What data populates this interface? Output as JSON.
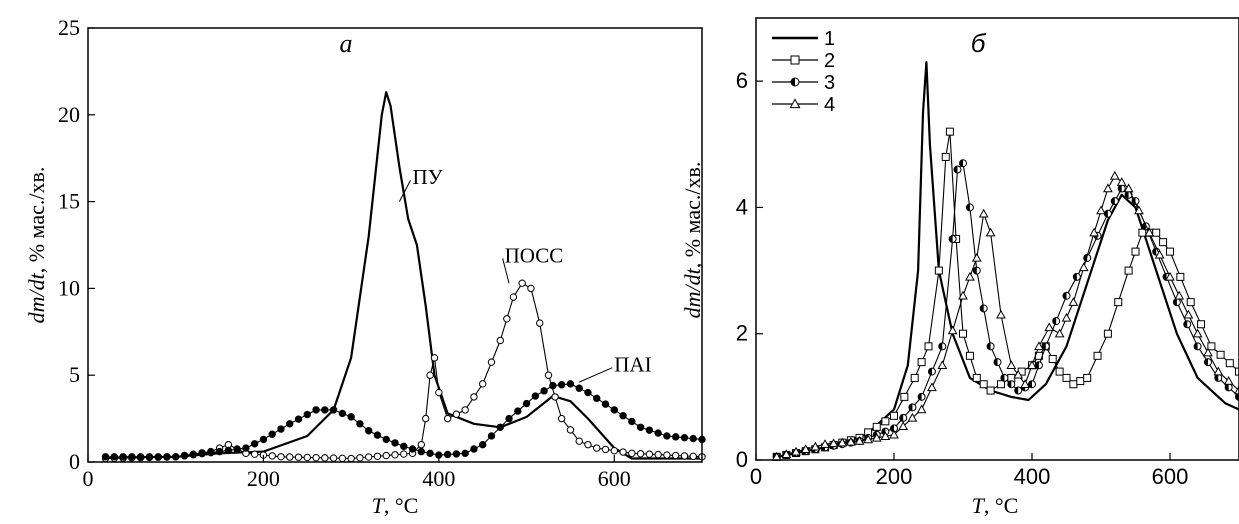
{
  "chart_data": [
    {
      "type": "line",
      "panel_label": "a",
      "xlabel_var": "T",
      "xlabel_unit": ", °C",
      "ylabel_var": "dm/dt",
      "ylabel_unit": ", % мас./хв.",
      "xlim": [
        0,
        700
      ],
      "ylim": [
        0,
        25
      ],
      "x_ticks": [
        0,
        200,
        400,
        600
      ],
      "y_ticks": [
        0,
        5,
        10,
        15,
        20,
        25
      ],
      "grid": false,
      "series": [
        {
          "name": "ПУ",
          "marker": "none",
          "points": [
            [
              20,
              0.25
            ],
            [
              100,
              0.3
            ],
            [
              150,
              0.5
            ],
            [
              200,
              0.6
            ],
            [
              250,
              1.5
            ],
            [
              280,
              3
            ],
            [
              300,
              6
            ],
            [
              320,
              13
            ],
            [
              335,
              20
            ],
            [
              340,
              21.3
            ],
            [
              345,
              20.5
            ],
            [
              355,
              17
            ],
            [
              365,
              14
            ],
            [
              375,
              12.5
            ],
            [
              385,
              9
            ],
            [
              395,
              5
            ],
            [
              410,
              2.8
            ],
            [
              440,
              2.2
            ],
            [
              470,
              2.0
            ],
            [
              500,
              2.6
            ],
            [
              530,
              3.8
            ],
            [
              550,
              3.5
            ],
            [
              570,
              2.5
            ],
            [
              600,
              0.8
            ],
            [
              620,
              0.2
            ],
            [
              700,
              0.2
            ]
          ]
        },
        {
          "name": "ПОСС",
          "marker": "open-circle",
          "points": [
            [
              20,
              0.2
            ],
            [
              100,
              0.3
            ],
            [
              140,
              0.6
            ],
            [
              160,
              1.0
            ],
            [
              180,
              0.5
            ],
            [
              220,
              0.3
            ],
            [
              300,
              0.2
            ],
            [
              370,
              0.5
            ],
            [
              380,
              1.0
            ],
            [
              385,
              2.5
            ],
            [
              390,
              5.0
            ],
            [
              395,
              6.0
            ],
            [
              400,
              4.0
            ],
            [
              410,
              2.5
            ],
            [
              430,
              3.0
            ],
            [
              450,
              4.5
            ],
            [
              470,
              7.0
            ],
            [
              485,
              9.5
            ],
            [
              495,
              10.3
            ],
            [
              505,
              10.0
            ],
            [
              515,
              8.0
            ],
            [
              525,
              5.0
            ],
            [
              540,
              2.5
            ],
            [
              560,
              1.2
            ],
            [
              580,
              0.8
            ],
            [
              620,
              0.5
            ],
            [
              700,
              0.3
            ]
          ]
        },
        {
          "name": "ПАІ",
          "marker": "filled-circle",
          "points": [
            [
              20,
              0.3
            ],
            [
              100,
              0.3
            ],
            [
              150,
              0.6
            ],
            [
              180,
              0.8
            ],
            [
              200,
              1.3
            ],
            [
              230,
              2.2
            ],
            [
              260,
              3.0
            ],
            [
              280,
              3.0
            ],
            [
              300,
              2.6
            ],
            [
              320,
              1.8
            ],
            [
              340,
              1.3
            ],
            [
              360,
              0.9
            ],
            [
              380,
              0.6
            ],
            [
              400,
              0.4
            ],
            [
              430,
              0.5
            ],
            [
              450,
              1.0
            ],
            [
              480,
              2.5
            ],
            [
              510,
              3.8
            ],
            [
              530,
              4.4
            ],
            [
              550,
              4.5
            ],
            [
              570,
              4.0
            ],
            [
              600,
              3.0
            ],
            [
              630,
              2.0
            ],
            [
              660,
              1.5
            ],
            [
              700,
              1.3
            ]
          ]
        }
      ],
      "annotations": [
        {
          "text": "ПУ",
          "x": 370,
          "y": 16,
          "from": [
            355,
            15
          ]
        },
        {
          "text": "ПОСС",
          "x": 475,
          "y": 11.5,
          "from": [
            480,
            10.3
          ]
        },
        {
          "text": "ПАІ",
          "x": 600,
          "y": 5.2,
          "from": [
            560,
            4.6
          ]
        }
      ]
    },
    {
      "type": "line",
      "panel_label": "б",
      "xlabel_var": "T",
      "xlabel_unit": ", °C",
      "ylabel_var": "dm/dt",
      "ylabel_unit": ", % мас./хв.",
      "xlim": [
        0,
        700
      ],
      "ylim": [
        0,
        7
      ],
      "x_ticks": [
        0,
        200,
        400,
        600
      ],
      "y_ticks": [
        0,
        2,
        4,
        6
      ],
      "grid": false,
      "legend_position": "top-left",
      "series": [
        {
          "name": "1",
          "marker": "none",
          "points": [
            [
              30,
              0.05
            ],
            [
              100,
              0.2
            ],
            [
              160,
              0.4
            ],
            [
              200,
              0.8
            ],
            [
              220,
              1.5
            ],
            [
              235,
              3.0
            ],
            [
              242,
              5.5
            ],
            [
              247,
              6.3
            ],
            [
              252,
              5.0
            ],
            [
              265,
              3.0
            ],
            [
              285,
              2.0
            ],
            [
              310,
              1.3
            ],
            [
              340,
              1.1
            ],
            [
              370,
              1.0
            ],
            [
              395,
              0.95
            ],
            [
              420,
              1.2
            ],
            [
              450,
              1.8
            ],
            [
              480,
              2.8
            ],
            [
              510,
              3.8
            ],
            [
              530,
              4.2
            ],
            [
              550,
              4.0
            ],
            [
              580,
              3.0
            ],
            [
              610,
              2.0
            ],
            [
              640,
              1.3
            ],
            [
              680,
              0.9
            ],
            [
              700,
              0.8
            ]
          ]
        },
        {
          "name": "2",
          "marker": "open-square",
          "points": [
            [
              30,
              0.05
            ],
            [
              100,
              0.2
            ],
            [
              150,
              0.35
            ],
            [
              200,
              0.7
            ],
            [
              230,
              1.3
            ],
            [
              250,
              1.8
            ],
            [
              265,
              3.0
            ],
            [
              275,
              4.8
            ],
            [
              281,
              5.2
            ],
            [
              290,
              3.5
            ],
            [
              300,
              2.0
            ],
            [
              320,
              1.3
            ],
            [
              340,
              1.1
            ],
            [
              370,
              1.3
            ],
            [
              400,
              1.5
            ],
            [
              420,
              1.8
            ],
            [
              440,
              1.4
            ],
            [
              460,
              1.2
            ],
            [
              480,
              1.3
            ],
            [
              510,
              2.0
            ],
            [
              540,
              3.0
            ],
            [
              560,
              3.6
            ],
            [
              580,
              3.6
            ],
            [
              600,
              3.3
            ],
            [
              630,
              2.5
            ],
            [
              660,
              1.8
            ],
            [
              700,
              1.4
            ]
          ]
        },
        {
          "name": "3",
          "marker": "half-circle",
          "points": [
            [
              30,
              0.05
            ],
            [
              100,
              0.2
            ],
            [
              150,
              0.3
            ],
            [
              200,
              0.5
            ],
            [
              240,
              1.0
            ],
            [
              270,
              1.8
            ],
            [
              285,
              3.5
            ],
            [
              292,
              4.6
            ],
            [
              300,
              4.7
            ],
            [
              310,
              4.0
            ],
            [
              320,
              3.0
            ],
            [
              340,
              1.8
            ],
            [
              360,
              1.3
            ],
            [
              380,
              1.1
            ],
            [
              400,
              1.2
            ],
            [
              420,
              1.8
            ],
            [
              450,
              2.6
            ],
            [
              480,
              3.2
            ],
            [
              510,
              3.9
            ],
            [
              530,
              4.3
            ],
            [
              550,
              4.1
            ],
            [
              580,
              3.3
            ],
            [
              610,
              2.5
            ],
            [
              640,
              1.8
            ],
            [
              670,
              1.3
            ],
            [
              700,
              1.0
            ]
          ]
        },
        {
          "name": "4",
          "marker": "open-triangle",
          "points": [
            [
              30,
              0.05
            ],
            [
              100,
              0.25
            ],
            [
              150,
              0.3
            ],
            [
              200,
              0.4
            ],
            [
              240,
              0.8
            ],
            [
              270,
              1.5
            ],
            [
              300,
              2.6
            ],
            [
              320,
              3.2
            ],
            [
              330,
              3.9
            ],
            [
              340,
              3.6
            ],
            [
              355,
              2.3
            ],
            [
              370,
              1.5
            ],
            [
              390,
              1.2
            ],
            [
              410,
              1.8
            ],
            [
              425,
              2.1
            ],
            [
              440,
              2.0
            ],
            [
              460,
              2.5
            ],
            [
              490,
              3.6
            ],
            [
              510,
              4.3
            ],
            [
              520,
              4.5
            ],
            [
              540,
              4.3
            ],
            [
              570,
              3.6
            ],
            [
              600,
              2.9
            ],
            [
              640,
              2.0
            ],
            [
              670,
              1.4
            ],
            [
              700,
              1.1
            ]
          ]
        }
      ]
    }
  ]
}
